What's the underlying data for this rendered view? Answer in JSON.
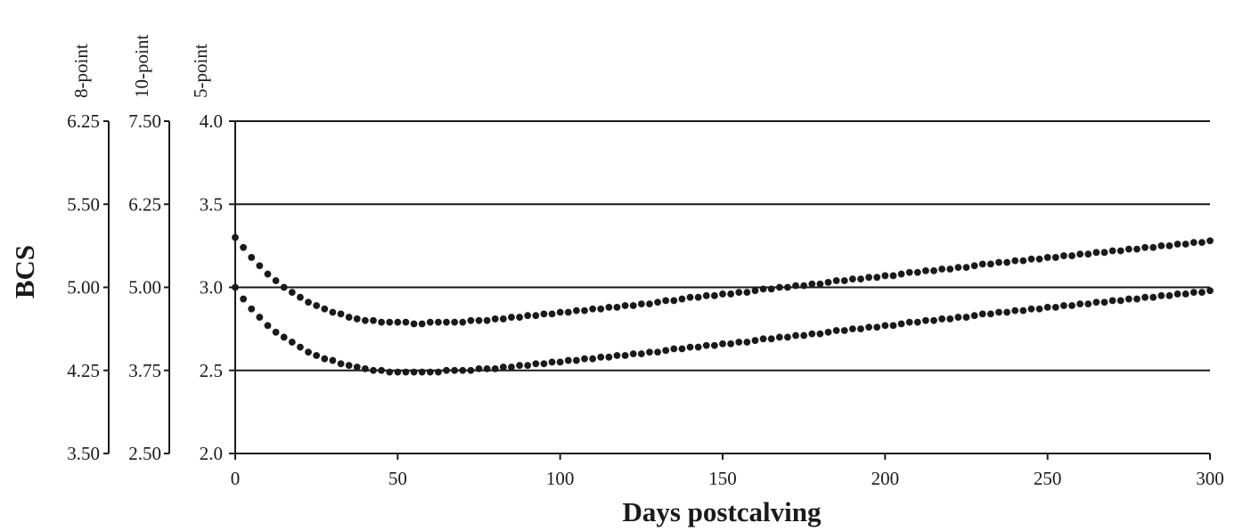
{
  "chart_data": {
    "type": "scatter",
    "title": "",
    "xlabel": "Days postcalving",
    "ylabel": "BCS",
    "xlim": [
      0,
      300
    ],
    "ylim": [
      2.0,
      4.0
    ],
    "x_ticks": [
      "0",
      "50",
      "100",
      "150",
      "200",
      "250",
      "300"
    ],
    "y_axes": [
      {
        "name": "5-point",
        "ticks": [
          "2.0",
          "2.5",
          "3.0",
          "3.5",
          "4.0"
        ]
      },
      {
        "name": "10-point",
        "ticks": [
          "2.50",
          "3.75",
          "5.00",
          "6.25",
          "7.50"
        ]
      },
      {
        "name": "8-point",
        "ticks": [
          "3.50",
          "4.25",
          "5.00",
          "5.50",
          "6.25"
        ]
      }
    ],
    "grid": "horizontal",
    "marker_color": "#1a1a1a",
    "series": [
      {
        "x": [
          0,
          2.5,
          5,
          7.5,
          10,
          12.5,
          15,
          17.5,
          20,
          22.5,
          25,
          27.5,
          30,
          32.5,
          35,
          37.5,
          40,
          42.5,
          45,
          47.5,
          50,
          52.5,
          55,
          57.5,
          60,
          62.5,
          65,
          67.5,
          70,
          72.5,
          75,
          77.5,
          80,
          82.5,
          85,
          87.5,
          90,
          92.5,
          95,
          97.5,
          100,
          102.5,
          105,
          107.5,
          110,
          112.5,
          115,
          117.5,
          120,
          122.5,
          125,
          127.5,
          130,
          132.5,
          135,
          137.5,
          140,
          142.5,
          145,
          147.5,
          150,
          152.5,
          155,
          157.5,
          160,
          162.5,
          165,
          167.5,
          170,
          172.5,
          175,
          177.5,
          180,
          182.5,
          185,
          187.5,
          190,
          192.5,
          195,
          197.5,
          200,
          202.5,
          205,
          207.5,
          210,
          212.5,
          215,
          217.5,
          220,
          222.5,
          225,
          227.5,
          230,
          232.5,
          235,
          237.5,
          240,
          242.5,
          245,
          247.5,
          250,
          252.5,
          255,
          257.5,
          260,
          262.5,
          265,
          267.5,
          270,
          272.5,
          275,
          277.5,
          280,
          282.5,
          285,
          287.5,
          290,
          292.5,
          295,
          297.5,
          300
        ],
        "values": [
          3.3,
          3.24,
          3.18,
          3.13,
          3.08,
          3.04,
          3.0,
          2.97,
          2.94,
          2.91,
          2.89,
          2.87,
          2.85,
          2.84,
          2.82,
          2.81,
          2.8,
          2.8,
          2.79,
          2.79,
          2.79,
          2.79,
          2.78,
          2.78,
          2.79,
          2.79,
          2.79,
          2.79,
          2.79,
          2.8,
          2.8,
          2.8,
          2.81,
          2.81,
          2.82,
          2.82,
          2.83,
          2.83,
          2.84,
          2.84,
          2.85,
          2.85,
          2.86,
          2.86,
          2.87,
          2.87,
          2.88,
          2.88,
          2.89,
          2.89,
          2.9,
          2.9,
          2.91,
          2.92,
          2.92,
          2.93,
          2.94,
          2.94,
          2.95,
          2.95,
          2.96,
          2.96,
          2.97,
          2.97,
          2.98,
          2.99,
          2.99,
          3.0,
          3.0,
          3.01,
          3.01,
          3.02,
          3.02,
          3.03,
          3.04,
          3.04,
          3.05,
          3.05,
          3.06,
          3.06,
          3.07,
          3.07,
          3.08,
          3.09,
          3.09,
          3.1,
          3.1,
          3.11,
          3.11,
          3.12,
          3.12,
          3.13,
          3.14,
          3.14,
          3.15,
          3.15,
          3.16,
          3.16,
          3.17,
          3.17,
          3.18,
          3.18,
          3.19,
          3.19,
          3.2,
          3.2,
          3.21,
          3.21,
          3.22,
          3.22,
          3.23,
          3.23,
          3.24,
          3.24,
          3.25,
          3.25,
          3.26,
          3.26,
          3.27,
          3.27,
          3.28
        ]
      },
      {
        "x": [
          0,
          2.5,
          5,
          7.5,
          10,
          12.5,
          15,
          17.5,
          20,
          22.5,
          25,
          27.5,
          30,
          32.5,
          35,
          37.5,
          40,
          42.5,
          45,
          47.5,
          50,
          52.5,
          55,
          57.5,
          60,
          62.5,
          65,
          67.5,
          70,
          72.5,
          75,
          77.5,
          80,
          82.5,
          85,
          87.5,
          90,
          92.5,
          95,
          97.5,
          100,
          102.5,
          105,
          107.5,
          110,
          112.5,
          115,
          117.5,
          120,
          122.5,
          125,
          127.5,
          130,
          132.5,
          135,
          137.5,
          140,
          142.5,
          145,
          147.5,
          150,
          152.5,
          155,
          157.5,
          160,
          162.5,
          165,
          167.5,
          170,
          172.5,
          175,
          177.5,
          180,
          182.5,
          185,
          187.5,
          190,
          192.5,
          195,
          197.5,
          200,
          202.5,
          205,
          207.5,
          210,
          212.5,
          215,
          217.5,
          220,
          222.5,
          225,
          227.5,
          230,
          232.5,
          235,
          237.5,
          240,
          242.5,
          245,
          247.5,
          250,
          252.5,
          255,
          257.5,
          260,
          262.5,
          265,
          267.5,
          270,
          272.5,
          275,
          277.5,
          280,
          282.5,
          285,
          287.5,
          290,
          292.5,
          295,
          297.5,
          300
        ],
        "values": [
          3.0,
          2.93,
          2.87,
          2.82,
          2.77,
          2.73,
          2.7,
          2.67,
          2.64,
          2.61,
          2.59,
          2.57,
          2.56,
          2.54,
          2.53,
          2.52,
          2.51,
          2.5,
          2.5,
          2.49,
          2.49,
          2.49,
          2.49,
          2.49,
          2.49,
          2.49,
          2.5,
          2.5,
          2.5,
          2.5,
          2.51,
          2.51,
          2.51,
          2.52,
          2.52,
          2.53,
          2.53,
          2.54,
          2.54,
          2.55,
          2.55,
          2.56,
          2.56,
          2.57,
          2.57,
          2.58,
          2.58,
          2.59,
          2.59,
          2.6,
          2.6,
          2.61,
          2.61,
          2.62,
          2.63,
          2.63,
          2.64,
          2.64,
          2.65,
          2.65,
          2.66,
          2.66,
          2.67,
          2.67,
          2.68,
          2.69,
          2.69,
          2.7,
          2.7,
          2.71,
          2.71,
          2.72,
          2.72,
          2.73,
          2.74,
          2.74,
          2.75,
          2.75,
          2.76,
          2.76,
          2.77,
          2.77,
          2.78,
          2.79,
          2.79,
          2.8,
          2.8,
          2.81,
          2.81,
          2.82,
          2.82,
          2.83,
          2.84,
          2.84,
          2.85,
          2.85,
          2.86,
          2.86,
          2.87,
          2.87,
          2.88,
          2.88,
          2.89,
          2.89,
          2.9,
          2.9,
          2.91,
          2.91,
          2.92,
          2.92,
          2.93,
          2.93,
          2.94,
          2.94,
          2.95,
          2.95,
          2.96,
          2.96,
          2.97,
          2.97,
          2.98
        ]
      }
    ]
  }
}
